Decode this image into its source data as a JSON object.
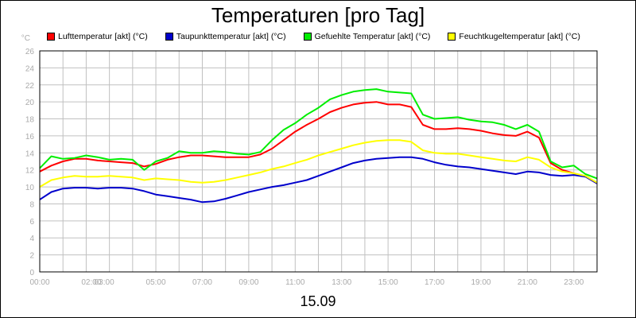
{
  "chart_data": {
    "type": "line",
    "title": "Temperaturen [pro Tag]",
    "xlabel": "15.09",
    "ylabel": "°C",
    "ylim": [
      0,
      26
    ],
    "xlim": [
      0,
      24
    ],
    "y_ticks": [
      "0",
      "2",
      "4",
      "6",
      "8",
      "10",
      "12",
      "14",
      "16",
      "18",
      "20",
      "22",
      "24",
      "26"
    ],
    "x_ticks": [
      {
        "value": 0,
        "label": "00:00"
      },
      {
        "value": 2,
        "label": "02:00"
      },
      {
        "value": 3,
        "label": "03:00"
      },
      {
        "value": 5,
        "label": "05:00"
      },
      {
        "value": 7,
        "label": "07:00"
      },
      {
        "value": 9,
        "label": "09:00"
      },
      {
        "value": 11,
        "label": "11:00"
      },
      {
        "value": 13,
        "label": "13:00"
      },
      {
        "value": 15,
        "label": "15:00"
      },
      {
        "value": 17,
        "label": "17:00"
      },
      {
        "value": 19,
        "label": "19:00"
      },
      {
        "value": 21,
        "label": "21:00"
      },
      {
        "value": 23,
        "label": "23:00"
      }
    ],
    "series": [
      {
        "name": "Lufttemperatur [akt] (°C)",
        "color": "#ff0000",
        "x": [
          0,
          0.5,
          1,
          1.5,
          2,
          2.5,
          3,
          3.5,
          4,
          4.5,
          5,
          5.5,
          6,
          6.5,
          7,
          7.5,
          8,
          8.5,
          9,
          9.5,
          10,
          10.5,
          11,
          11.5,
          12,
          12.5,
          13,
          13.5,
          14,
          14.5,
          15,
          15.5,
          16,
          16.5,
          17,
          17.5,
          18,
          18.5,
          19,
          19.5,
          20,
          20.5,
          21,
          21.5,
          22,
          22.5,
          23,
          23.5,
          24
        ],
        "values": [
          11.8,
          12.5,
          13.0,
          13.3,
          13.3,
          13.1,
          13.0,
          12.9,
          12.8,
          12.4,
          12.7,
          13.2,
          13.5,
          13.7,
          13.7,
          13.6,
          13.5,
          13.5,
          13.5,
          13.8,
          14.5,
          15.5,
          16.5,
          17.3,
          18.0,
          18.8,
          19.3,
          19.7,
          19.9,
          20.0,
          19.7,
          19.7,
          19.4,
          17.3,
          16.8,
          16.8,
          16.9,
          16.8,
          16.6,
          16.3,
          16.1,
          16.0,
          16.5,
          15.8,
          12.8,
          12.0,
          11.6,
          11.2,
          10.4
        ]
      },
      {
        "name": "Taupunkttemperatur [akt] (°C)",
        "color": "#0000cc",
        "x": [
          0,
          0.5,
          1,
          1.5,
          2,
          2.5,
          3,
          3.5,
          4,
          4.5,
          5,
          5.5,
          6,
          6.5,
          7,
          7.5,
          8,
          8.5,
          9,
          9.5,
          10,
          10.5,
          11,
          11.5,
          12,
          12.5,
          13,
          13.5,
          14,
          14.5,
          15,
          15.5,
          16,
          16.5,
          17,
          17.5,
          18,
          18.5,
          19,
          19.5,
          20,
          20.5,
          21,
          21.5,
          22,
          22.5,
          23,
          23.5,
          24
        ],
        "values": [
          8.5,
          9.4,
          9.8,
          9.9,
          9.9,
          9.8,
          9.9,
          9.9,
          9.8,
          9.5,
          9.1,
          8.9,
          8.7,
          8.5,
          8.2,
          8.3,
          8.6,
          9.0,
          9.4,
          9.7,
          10.0,
          10.2,
          10.5,
          10.8,
          11.3,
          11.8,
          12.3,
          12.8,
          13.1,
          13.3,
          13.4,
          13.5,
          13.5,
          13.3,
          12.9,
          12.6,
          12.4,
          12.3,
          12.1,
          11.9,
          11.7,
          11.5,
          11.8,
          11.7,
          11.4,
          11.3,
          11.4,
          11.2,
          10.4
        ]
      },
      {
        "name": "Gefuehlte Temperatur [akt] (°C)",
        "color": "#00ee00",
        "x": [
          0,
          0.5,
          1,
          1.5,
          2,
          2.5,
          3,
          3.5,
          4,
          4.5,
          5,
          5.5,
          6,
          6.5,
          7,
          7.5,
          8,
          8.5,
          9,
          9.5,
          10,
          10.5,
          11,
          11.5,
          12,
          12.5,
          13,
          13.5,
          14,
          14.5,
          15,
          15.5,
          16,
          16.5,
          17,
          17.5,
          18,
          18.5,
          19,
          19.5,
          20,
          20.5,
          21,
          21.5,
          22,
          22.5,
          23,
          23.5,
          24
        ],
        "values": [
          12.2,
          13.6,
          13.3,
          13.4,
          13.7,
          13.5,
          13.2,
          13.3,
          13.2,
          12.0,
          13.0,
          13.4,
          14.2,
          14.0,
          14.0,
          14.2,
          14.1,
          13.9,
          13.8,
          14.1,
          15.5,
          16.7,
          17.5,
          18.5,
          19.3,
          20.3,
          20.8,
          21.2,
          21.4,
          21.5,
          21.2,
          21.1,
          21.0,
          18.5,
          18.0,
          18.1,
          18.2,
          17.9,
          17.7,
          17.6,
          17.3,
          16.8,
          17.3,
          16.5,
          13.0,
          12.3,
          12.5,
          11.5,
          11.0
        ]
      },
      {
        "name": "Feuchtkugeltemperatur [akt] (°C)",
        "color": "#ffff00",
        "x": [
          0,
          0.5,
          1,
          1.5,
          2,
          2.5,
          3,
          3.5,
          4,
          4.5,
          5,
          5.5,
          6,
          6.5,
          7,
          7.5,
          8,
          8.5,
          9,
          9.5,
          10,
          10.5,
          11,
          11.5,
          12,
          12.5,
          13,
          13.5,
          14,
          14.5,
          15,
          15.5,
          16,
          16.5,
          17,
          17.5,
          18,
          18.5,
          19,
          19.5,
          20,
          20.5,
          21,
          21.5,
          22,
          22.5,
          23,
          23.5,
          24
        ],
        "values": [
          10.0,
          10.8,
          11.1,
          11.3,
          11.2,
          11.2,
          11.3,
          11.2,
          11.1,
          10.8,
          11.0,
          10.9,
          10.8,
          10.6,
          10.5,
          10.6,
          10.8,
          11.1,
          11.4,
          11.7,
          12.1,
          12.4,
          12.8,
          13.2,
          13.7,
          14.1,
          14.5,
          14.9,
          15.2,
          15.4,
          15.5,
          15.5,
          15.3,
          14.3,
          14.0,
          13.9,
          13.9,
          13.7,
          13.5,
          13.3,
          13.1,
          13.0,
          13.5,
          13.2,
          12.3,
          11.8,
          11.6,
          11.3,
          10.5
        ]
      }
    ]
  }
}
